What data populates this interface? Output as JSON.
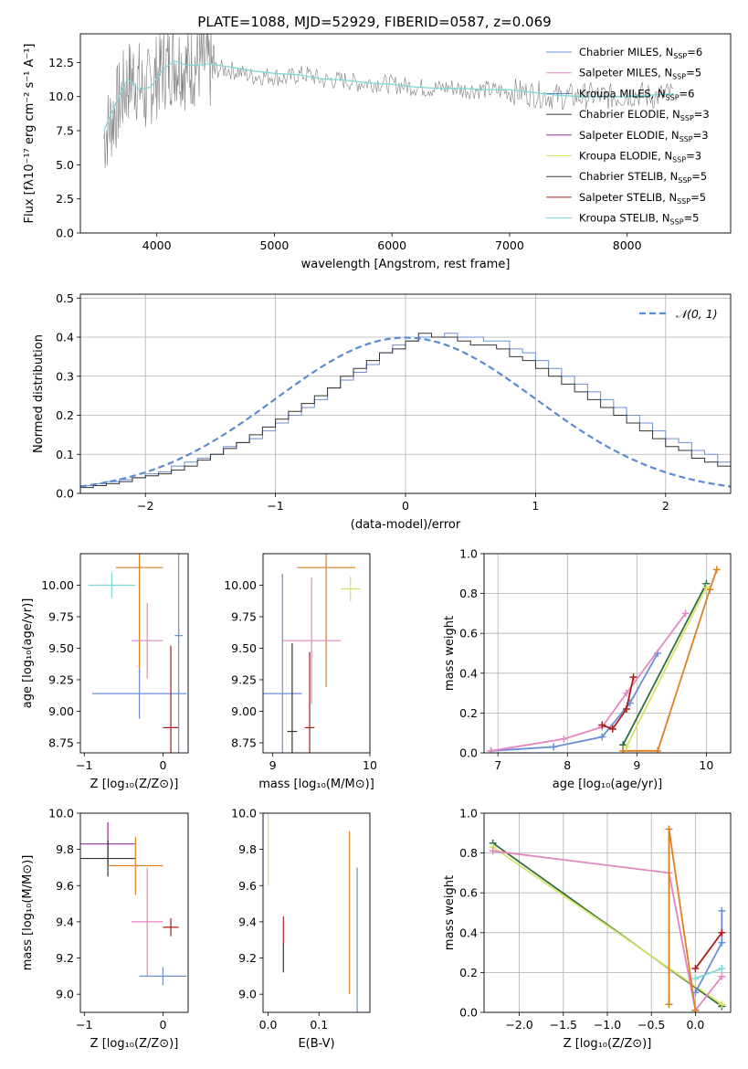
{
  "title": "PLATE=1088, MJD=52929, FIBERID=0587, z=0.069",
  "colors": {
    "cmiles": "#6a8fd6",
    "smiles": "#e585c0",
    "kmiles": "#4f7bc0",
    "celodie": "#333333",
    "selodie": "#9b2fa8",
    "kelodie": "#d9e36a",
    "cstelib": "#2f6f3f",
    "sstelib": "#b01c1c",
    "kstelib": "#7fd8d8",
    "orange": "#e07f20",
    "gray": "#7f7f7f",
    "grid": "#b0b0b0",
    "normal": "#5b8bd0"
  },
  "chart_data": [
    {
      "id": "spectrum",
      "type": "line",
      "title": "PLATE=1088, MJD=52929, FIBERID=0587, z=0.069",
      "xlabel": "wavelength [Angstrom, rest frame]",
      "ylabel": "Flux [fλ10⁻¹⁷ erg cm⁻² s⁻¹ A⁻¹]",
      "xlim": [
        3350,
        8880
      ],
      "ylim": [
        0,
        14.6
      ],
      "xticks": [
        4000,
        5000,
        6000,
        7000,
        8000
      ],
      "yticks": [
        0.0,
        2.5,
        5.0,
        7.5,
        10.0,
        12.5
      ],
      "legend_position": "top-right",
      "legend": [
        {
          "label": "Chabrier MILES, N",
          "sub": "SSP",
          "tail": "=6",
          "color": "#6a8fd6"
        },
        {
          "label": "Salpeter MILES, N",
          "sub": "SSP",
          "tail": "=5",
          "color": "#e585c0"
        },
        {
          "label": "Kroupa MILES, N",
          "sub": "SSP",
          "tail": "=6",
          "color": "#4f7bc0"
        },
        {
          "label": "Chabrier ELODIE, N",
          "sub": "SSP",
          "tail": "=3",
          "color": "#333333"
        },
        {
          "label": "Salpeter ELODIE, N",
          "sub": "SSP",
          "tail": "=3",
          "color": "#9b2fa8"
        },
        {
          "label": "Kroupa ELODIE, N",
          "sub": "SSP",
          "tail": "=3",
          "color": "#d9e36a"
        },
        {
          "label": "Chabrier STELIB, N",
          "sub": "SSP",
          "tail": "=5",
          "color": "#333333"
        },
        {
          "label": "Salpeter STELIB, N",
          "sub": "SSP",
          "tail": "=5",
          "color": "#b01c1c"
        },
        {
          "label": "Kroupa STELIB, N",
          "sub": "SSP",
          "tail": "=5",
          "color": "#7fd8d8"
        }
      ],
      "data_series": {
        "name": "data",
        "color": "#7f7f7f",
        "x": [
          3550,
          3600,
          3650,
          3700,
          3750,
          3800,
          3850,
          3900,
          3950,
          4000,
          4050,
          4100,
          4150,
          4200,
          4250,
          4300,
          4350,
          4400,
          4450,
          4500,
          4600,
          4700,
          4800,
          4900,
          5000,
          5100,
          5200,
          5300,
          5400,
          5500,
          5600,
          5700,
          5800,
          5900,
          6000,
          6100,
          6200,
          6300,
          6400,
          6500,
          6600,
          6700,
          6800,
          6900,
          7000,
          7100,
          7200,
          7300,
          7400,
          7500,
          7600,
          7700,
          7800,
          7900,
          8000,
          8100,
          8200,
          8300,
          8400
        ],
        "y": [
          7.0,
          8.0,
          9.0,
          10.0,
          11.0,
          11.5,
          11.0,
          10.0,
          11.0,
          11.5,
          12.0,
          12.3,
          12.5,
          12.5,
          12.0,
          12.2,
          12.4,
          12.5,
          12.0,
          12.0,
          12.0,
          11.8,
          11.5,
          11.5,
          11.5,
          11.3,
          11.6,
          11.6,
          11.2,
          11.2,
          11.2,
          11.0,
          11.0,
          11.0,
          10.9,
          10.8,
          10.7,
          10.6,
          10.6,
          10.7,
          10.5,
          10.5,
          10.5,
          10.4,
          10.4,
          10.3,
          10.2,
          10.1,
          10.0,
          10.0,
          10.0,
          10.1,
          10.0,
          10.0,
          10.1,
          10.2,
          10.0,
          10.1,
          10.2
        ]
      },
      "model_series": {
        "name": "model",
        "color": "#7fd8d8",
        "x": [
          3550,
          3650,
          3750,
          3850,
          3950,
          4050,
          4150,
          4250,
          4350,
          4450,
          4600,
          4800,
          5000,
          5200,
          5400,
          5600,
          5800,
          6000,
          6200,
          6400,
          6600,
          6800,
          7000,
          7200,
          7400,
          7600,
          7800,
          8000,
          8200,
          8400
        ],
        "y": [
          7.5,
          9.5,
          11.3,
          10.5,
          10.7,
          12.0,
          12.6,
          12.3,
          12.3,
          12.4,
          12.2,
          11.9,
          11.7,
          11.6,
          11.3,
          11.2,
          11.0,
          10.9,
          10.7,
          10.6,
          10.6,
          10.5,
          10.5,
          10.3,
          10.1,
          10.0,
          10.0,
          10.0,
          10.1,
          10.2
        ]
      }
    },
    {
      "id": "residuals",
      "type": "line",
      "xlabel": "(data-model)/error",
      "ylabel": "Normed distribution",
      "xlim": [
        -2.5,
        2.5
      ],
      "ylim": [
        0,
        0.51
      ],
      "xticks": [
        -2,
        -1,
        0,
        1,
        2
      ],
      "yticks": [
        0.0,
        0.1,
        0.2,
        0.3,
        0.4,
        0.5
      ],
      "grid": true,
      "legend_position": "top-right",
      "legend": [
        {
          "label": "𝒩(0, 1)",
          "color": "#5b8bd0",
          "style": "dashed"
        }
      ],
      "bin_width": 0.1,
      "bin_start": -2.5,
      "histograms": [
        {
          "color": "#6a8fd6",
          "values": [
            0.02,
            0.025,
            0.03,
            0.035,
            0.04,
            0.05,
            0.055,
            0.07,
            0.08,
            0.09,
            0.1,
            0.12,
            0.13,
            0.14,
            0.16,
            0.18,
            0.2,
            0.22,
            0.24,
            0.27,
            0.29,
            0.31,
            0.33,
            0.36,
            0.38,
            0.39,
            0.4,
            0.4,
            0.41,
            0.4,
            0.4,
            0.39,
            0.39,
            0.37,
            0.36,
            0.34,
            0.32,
            0.3,
            0.28,
            0.26,
            0.24,
            0.22,
            0.2,
            0.18,
            0.16,
            0.14,
            0.13,
            0.11,
            0.1,
            0.08
          ]
        },
        {
          "color": "#333333",
          "values": [
            0.015,
            0.02,
            0.025,
            0.03,
            0.04,
            0.045,
            0.05,
            0.06,
            0.07,
            0.085,
            0.1,
            0.115,
            0.13,
            0.15,
            0.17,
            0.19,
            0.21,
            0.23,
            0.25,
            0.27,
            0.3,
            0.32,
            0.34,
            0.36,
            0.37,
            0.39,
            0.41,
            0.4,
            0.4,
            0.39,
            0.38,
            0.38,
            0.37,
            0.35,
            0.34,
            0.32,
            0.3,
            0.28,
            0.26,
            0.24,
            0.22,
            0.2,
            0.18,
            0.16,
            0.14,
            0.12,
            0.11,
            0.09,
            0.08,
            0.07
          ]
        }
      ],
      "normal_curve": {
        "mean": 0,
        "sigma": 1
      }
    },
    {
      "id": "age-vs-Z",
      "type": "scatter",
      "xlabel": "Z [log₁₀(Z/Z⊙)]",
      "ylabel": "age  [log₁₀(age/yr)]",
      "xlim": [
        -1.05,
        0.32
      ],
      "ylim": [
        8.67,
        10.25
      ],
      "xticks": [
        -1,
        0
      ],
      "yticks": [
        8.75,
        9.0,
        9.25,
        9.5,
        9.75,
        10.0
      ],
      "points": [
        {
          "x": -0.65,
          "y": 10.0,
          "xerr": 0.3,
          "yerr": 0.1,
          "color": "#7fd8d8"
        },
        {
          "x": -0.3,
          "y": 10.14,
          "xerr": 0.3,
          "yerr": 0.95,
          "color": "#e07f20"
        },
        {
          "x": -0.2,
          "y": 9.56,
          "xerr": 0.2,
          "yerr": 0.3,
          "color": "#e585c0"
        },
        {
          "x": -0.3,
          "y": 9.14,
          "xerr": 0.6,
          "yerr": 0.2,
          "color": "#6a8fd6"
        },
        {
          "x": 0.1,
          "y": 8.87,
          "xerr": 0.1,
          "yerr": 0.65,
          "color": "#b01c1c"
        },
        {
          "x": 0.2,
          "y": 9.6,
          "xerr": 0.05,
          "yerr": 1.0,
          "color": "#6a8fd6"
        }
      ]
    },
    {
      "id": "age-vs-mass",
      "type": "scatter",
      "xlabel": "mass [log₁₀(M/M⊙)]",
      "ylabel": "",
      "xlim": [
        8.9,
        10.0
      ],
      "ylim": [
        8.67,
        10.25
      ],
      "xticks": [
        9,
        10
      ],
      "yticks": [
        8.75,
        9.0,
        9.25,
        9.5,
        9.75,
        10.0
      ],
      "points": [
        {
          "x": 9.55,
          "y": 10.14,
          "xerr": 0.3,
          "yerr": 0.95,
          "color": "#e07f20"
        },
        {
          "x": 9.8,
          "y": 9.97,
          "xerr": 0.1,
          "yerr": 0.1,
          "color": "#d9e36a"
        },
        {
          "x": 9.4,
          "y": 9.56,
          "xerr": 0.3,
          "yerr": 0.5,
          "color": "#e585c0"
        },
        {
          "x": 9.1,
          "y": 9.14,
          "xerr": 0.2,
          "yerr": 0.95,
          "color": "#6a8fd6"
        },
        {
          "x": 9.38,
          "y": 8.87,
          "xerr": 0.05,
          "yerr": 0.6,
          "color": "#b01c1c"
        },
        {
          "x": 9.2,
          "y": 8.84,
          "xerr": 0.05,
          "yerr": 0.7,
          "color": "#333333"
        }
      ]
    },
    {
      "id": "mass-weight-vs-age",
      "type": "line",
      "xlabel": "age  [log₁₀(age/yr)]",
      "ylabel": "mass weight",
      "xlim": [
        6.8,
        10.35
      ],
      "ylim": [
        0,
        1.0
      ],
      "xticks": [
        7,
        8,
        9,
        10
      ],
      "yticks": [
        0.0,
        0.2,
        0.4,
        0.6,
        0.8,
        1.0
      ],
      "grid": true,
      "series": [
        {
          "color": "#6a8fd6",
          "x": [
            6.9,
            7.8,
            8.5,
            8.9,
            9.3
          ],
          "y": [
            0.01,
            0.03,
            0.08,
            0.25,
            0.5
          ]
        },
        {
          "color": "#e585c0",
          "x": [
            6.9,
            7.95,
            8.5,
            8.85,
            9.7
          ],
          "y": [
            0.01,
            0.07,
            0.13,
            0.3,
            0.7
          ]
        },
        {
          "color": "#b01c1c",
          "x": [
            8.5,
            8.65,
            8.85,
            8.95
          ],
          "y": [
            0.14,
            0.12,
            0.22,
            0.38
          ]
        },
        {
          "color": "#e07f20",
          "x": [
            8.8,
            9.3,
            10.05,
            10.15
          ],
          "y": [
            0.01,
            0.01,
            0.82,
            0.92
          ]
        },
        {
          "color": "#2f6f3f",
          "x": [
            8.8,
            10.0
          ],
          "y": [
            0.04,
            0.85
          ]
        },
        {
          "color": "#d9e36a",
          "x": [
            8.85,
            10.0
          ],
          "y": [
            0.03,
            0.83
          ]
        }
      ]
    },
    {
      "id": "mass-vs-Z",
      "type": "scatter",
      "xlabel": "Z [log₁₀(Z/Z⊙)]",
      "ylabel": "mass [log₁₀(M/M⊙)]",
      "xlim": [
        -1.05,
        0.32
      ],
      "ylim": [
        8.9,
        10.0
      ],
      "xticks": [
        -1,
        0
      ],
      "yticks": [
        9.0,
        9.2,
        9.4,
        9.6,
        9.8,
        10.0
      ],
      "points": [
        {
          "x": -0.7,
          "y": 9.83,
          "xerr": 0.35,
          "yerr": 0.12,
          "color": "#9b2fa8"
        },
        {
          "x": -0.7,
          "y": 9.75,
          "xerr": 0.35,
          "yerr": 0.1,
          "color": "#333333"
        },
        {
          "x": -0.35,
          "y": 9.71,
          "xerr": 0.35,
          "yerr": 0.16,
          "color": "#e07f20"
        },
        {
          "x": -0.2,
          "y": 9.4,
          "xerr": 0.2,
          "yerr": 0.3,
          "color": "#e585c0"
        },
        {
          "x": 0.1,
          "y": 9.37,
          "xerr": 0.1,
          "yerr": 0.05,
          "color": "#b01c1c"
        },
        {
          "x": 0.0,
          "y": 9.1,
          "xerr": 0.3,
          "yerr": 0.05,
          "color": "#6a8fd6"
        }
      ]
    },
    {
      "id": "mass-vs-ebv",
      "type": "scatter",
      "xlabel": "E(B-V)",
      "ylabel": "",
      "xlim": [
        -0.01,
        0.2
      ],
      "ylim": [
        8.9,
        10.0
      ],
      "xticks": [
        0.0,
        0.1
      ],
      "yticks": [
        9.0,
        9.2,
        9.4,
        9.6,
        9.8,
        10.0
      ],
      "points": [
        {
          "x": 0.0,
          "y": 9.8,
          "xerr": 0,
          "yerr": 0.2,
          "color": "#d9e36a"
        },
        {
          "x": 0.03,
          "y": 9.35,
          "xerr": 0,
          "yerr": 0.08,
          "color": "#b01c1c"
        },
        {
          "x": 0.03,
          "y": 9.2,
          "xerr": 0,
          "yerr": 0.08,
          "color": "#333333"
        },
        {
          "x": 0.16,
          "y": 9.45,
          "xerr": 0,
          "yerr": 0.45,
          "color": "#e07f20"
        },
        {
          "x": 0.175,
          "y": 9.3,
          "xerr": 0,
          "yerr": 0.4,
          "color": "#6a8fd6"
        }
      ]
    },
    {
      "id": "mass-weight-vs-Z",
      "type": "line",
      "xlabel": "Z [log₁₀(Z/Z⊙)]",
      "ylabel": "mass weight",
      "xlim": [
        -2.4,
        0.4
      ],
      "ylim": [
        0,
        1.0
      ],
      "xticks": [
        -2.0,
        -1.5,
        -1.0,
        -0.5,
        0.0
      ],
      "yticks": [
        0.0,
        0.2,
        0.4,
        0.6,
        0.8,
        1.0
      ],
      "grid": true,
      "series": [
        {
          "color": "#2f6f3f",
          "x": [
            -2.3,
            0.3
          ],
          "y": [
            0.85,
            0.03
          ]
        },
        {
          "color": "#d9e36a",
          "x": [
            -2.3,
            0.3
          ],
          "y": [
            0.83,
            0.04
          ]
        },
        {
          "color": "#e585c0",
          "x": [
            -2.3,
            -0.3,
            0.0,
            0.3
          ],
          "y": [
            0.81,
            0.7,
            0.01,
            0.18
          ]
        },
        {
          "color": "#e07f20",
          "x": [
            -0.3,
            -0.3,
            0.0
          ],
          "y": [
            0.04,
            0.92,
            0.01
          ]
        },
        {
          "color": "#6a8fd6",
          "x": [
            0.0,
            0.3,
            0.3
          ],
          "y": [
            0.1,
            0.35,
            0.51
          ]
        },
        {
          "color": "#b01c1c",
          "x": [
            0.0,
            0.3
          ],
          "y": [
            0.22,
            0.4
          ]
        },
        {
          "color": "#7fd8d8",
          "x": [
            0.0,
            0.3
          ],
          "y": [
            0.17,
            0.22
          ]
        }
      ]
    }
  ]
}
